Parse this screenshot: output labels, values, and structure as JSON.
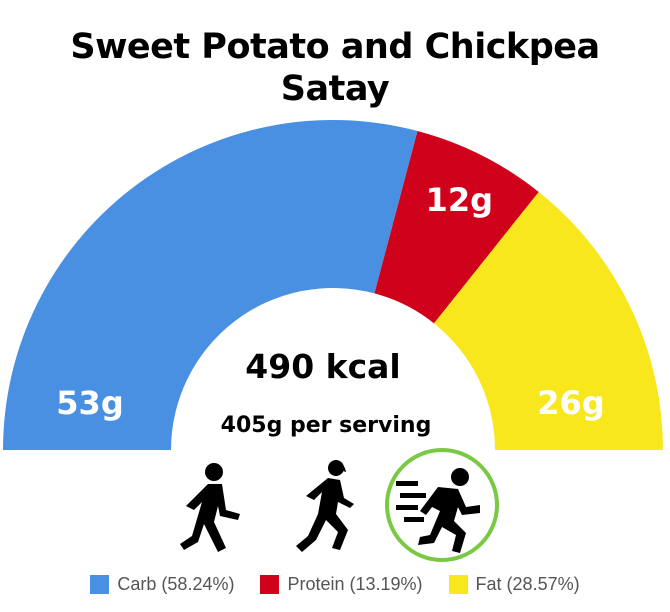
{
  "title_lines": [
    "Sweet Potato and Chickpea",
    "Satay"
  ],
  "center": {
    "kcal": "490 kcal",
    "serving": "405g per serving"
  },
  "activity_icons": [
    "walking-person-icon",
    "running-woman-icon",
    "sprinting-person-icon"
  ],
  "highlighted_activity": "sprinting-person-icon",
  "highlight_color": "#7ac943",
  "chart_data": {
    "type": "pie",
    "variant": "semi-donut",
    "categories": [
      "Carb",
      "Protein",
      "Fat"
    ],
    "values": [
      53,
      12,
      26
    ],
    "value_labels": [
      "53g",
      "12g",
      "26g"
    ],
    "percentages": [
      58.24,
      13.19,
      28.57
    ],
    "colors": [
      "#4a90e2",
      "#d0021b",
      "#f8e71c"
    ],
    "legend": [
      {
        "label": "Carb (58.24%)",
        "color": "#4a90e2"
      },
      {
        "label": "Protein (13.19%)",
        "color": "#d0021b"
      },
      {
        "label": "Fat (28.57%)",
        "color": "#f8e71c"
      }
    ],
    "legend_position": "bottom"
  }
}
